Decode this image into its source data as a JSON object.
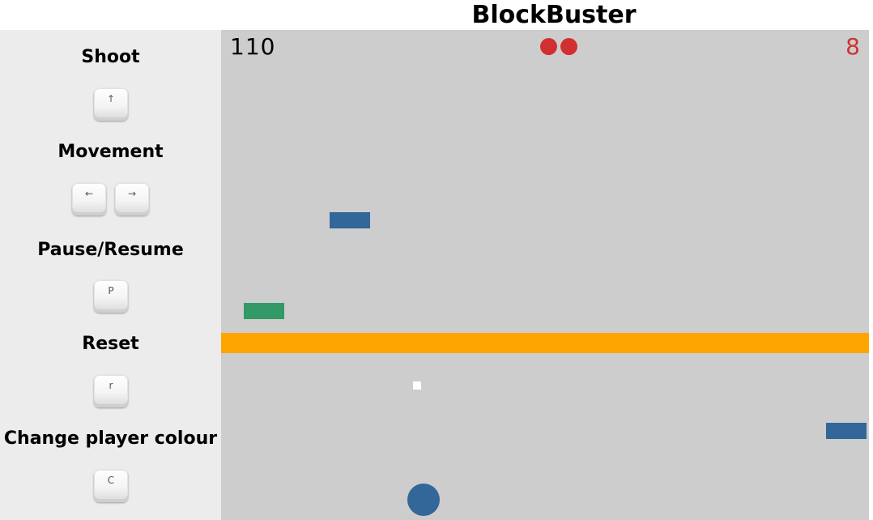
{
  "app": {
    "title": "BlockBuster"
  },
  "controls": [
    {
      "label": "Shoot",
      "keys": [
        {
          "glyph": "↑",
          "icon": "arrow-up-key-icon"
        }
      ]
    },
    {
      "label": "Movement",
      "keys": [
        {
          "glyph": "←",
          "icon": "arrow-left-key-icon"
        },
        {
          "glyph": "→",
          "icon": "arrow-right-key-icon"
        }
      ]
    },
    {
      "label": "Pause/Resume",
      "keys": [
        {
          "glyph": "P",
          "icon": "p-key-icon"
        }
      ]
    },
    {
      "label": "Reset",
      "keys": [
        {
          "glyph": "r",
          "icon": "r-key-icon"
        }
      ]
    },
    {
      "label": "Change player colour",
      "keys": [
        {
          "glyph": "C",
          "icon": "c-key-icon"
        }
      ]
    }
  ],
  "hud": {
    "score": "110",
    "level": "8",
    "lives_count": 2,
    "lives_color": "#d03030",
    "level_color": "#cc3333"
  },
  "colors": {
    "background": "#cdcdcd",
    "sidebar": "#ececec",
    "barrier": "#ffa500",
    "player": "#336699",
    "block_blue": "#336699",
    "block_green": "#339966",
    "bullet": "#ffffff"
  }
}
